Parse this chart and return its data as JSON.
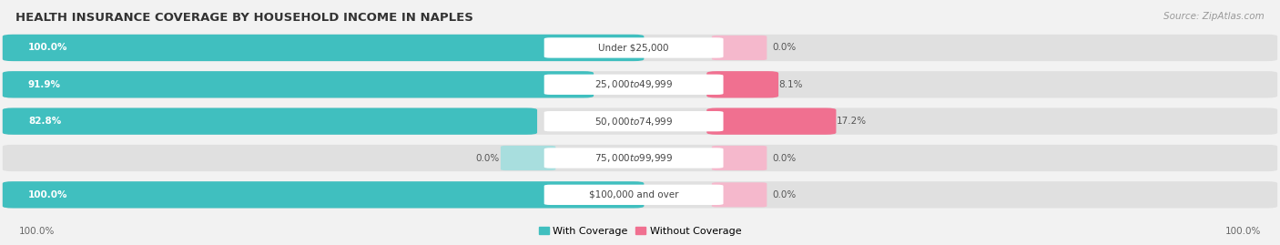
{
  "title": "HEALTH INSURANCE COVERAGE BY HOUSEHOLD INCOME IN NAPLES",
  "source": "Source: ZipAtlas.com",
  "categories": [
    "Under $25,000",
    "$25,000 to $49,999",
    "$50,000 to $74,999",
    "$75,000 to $99,999",
    "$100,000 and over"
  ],
  "with_coverage": [
    100.0,
    91.9,
    82.8,
    0.0,
    100.0
  ],
  "without_coverage": [
    0.0,
    8.1,
    17.2,
    0.0,
    0.0
  ],
  "color_with": "#40bfbf",
  "color_without": "#f07090",
  "color_with_light": "#a8dede",
  "color_without_light": "#f5b8cc",
  "bg_color": "#f2f2f2",
  "bar_bg": "#e0e0e0",
  "legend_with": "With Coverage",
  "legend_without": "Without Coverage",
  "x_left_label": "100.0%",
  "x_right_label": "100.0%",
  "title_fontsize": 9.5,
  "label_fontsize": 7.5,
  "category_fontsize": 7.5,
  "source_fontsize": 7.5
}
